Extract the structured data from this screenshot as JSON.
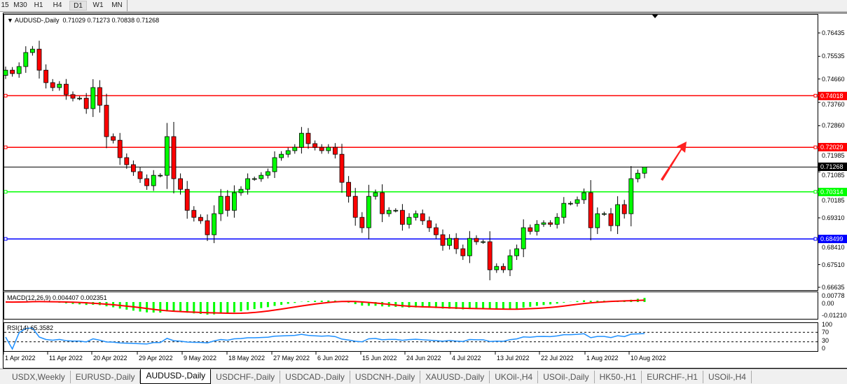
{
  "timeframes": [
    "15",
    "M30",
    "H1",
    "H4",
    "D1",
    "W1",
    "MN"
  ],
  "active_timeframe": "D1",
  "chart": {
    "header": "AUDUSD-,Daily",
    "ohlc": "0.71029 0.71273 0.70838 0.71268",
    "price_axis": [
      "0.76435",
      "0.75535",
      "0.74660",
      "0.73760",
      "0.72860",
      "0.71985",
      "0.71085",
      "0.70185",
      "0.69310",
      "0.68410",
      "0.67510",
      "0.66635"
    ],
    "price_range": [
      0.66635,
      0.76435
    ],
    "levels": [
      {
        "price": 0.74018,
        "label": "0.74018",
        "color": "#ff0000"
      },
      {
        "price": 0.72029,
        "label": "0.72029",
        "color": "#ff0000"
      },
      {
        "price": 0.71268,
        "label": "0.71268",
        "color": "#000000"
      },
      {
        "price": 0.70314,
        "label": "0.70314",
        "color": "#00ff00"
      },
      {
        "price": 0.68499,
        "label": "0.68499",
        "color": "#0000ff"
      }
    ],
    "bull_color": "#00ff00",
    "bear_color": "#ff0000",
    "first_open": 0.748,
    "closes": [
      0.75,
      0.7487,
      0.7514,
      0.7568,
      0.7581,
      0.75,
      0.7452,
      0.7433,
      0.7446,
      0.7406,
      0.7392,
      0.7392,
      0.7352,
      0.7433,
      0.7365,
      0.7244,
      0.723,
      0.7163,
      0.7136,
      0.7109,
      0.7082,
      0.7055,
      0.7095,
      0.7095,
      0.7244,
      0.7082,
      0.7041,
      0.696,
      0.6933,
      0.692,
      0.6866,
      0.6947,
      0.7014,
      0.696,
      0.7028,
      0.7041,
      0.7082,
      0.7082,
      0.7095,
      0.7109,
      0.7163,
      0.7176,
      0.719,
      0.7203,
      0.7257,
      0.7217,
      0.7203,
      0.719,
      0.7203,
      0.7176,
      0.7068,
      0.7014,
      0.6933,
      0.6893,
      0.7014,
      0.7028,
      0.6947,
      0.696,
      0.696,
      0.6906,
      0.6933,
      0.6947,
      0.692,
      0.6893,
      0.6866,
      0.6825,
      0.6852,
      0.6812,
      0.6785,
      0.6852,
      0.6839,
      0.6839,
      0.6731,
      0.6744,
      0.6731,
      0.6785,
      0.6812,
      0.6893,
      0.6879,
      0.6906,
      0.6912,
      0.6906,
      0.6933,
      0.6987,
      0.6987,
      0.7001,
      0.7028,
      0.6893,
      0.6947,
      0.6947,
      0.6901,
      0.6982,
      0.6947,
      0.7082,
      0.7103,
      0.71268
    ],
    "last_candle": {
      "open": 0.71029,
      "high": 0.71273,
      "low": 0.70838,
      "close": 0.71268
    },
    "arrow_color": "#ff2020"
  },
  "macd": {
    "label": "MACD(12,26,9) 0.004407 0.002351",
    "axis": [
      "0.00778",
      "0.00",
      "-0.01210"
    ],
    "hist_color": "#00ff00",
    "signal_color": "#ff0000"
  },
  "rsi": {
    "label": "RSI(14) 65.3582",
    "axis": [
      "100",
      "70",
      "30",
      "0"
    ],
    "line_color": "#1e90ff"
  },
  "dates": [
    "1 Apr 2022",
    "11 Apr 2022",
    "20 Apr 2022",
    "29 Apr 2022",
    "9 May 2022",
    "18 May 2022",
    "27 May 2022",
    "6 Jun 2022",
    "15 Jun 2022",
    "24 Jun 2022",
    "4 Jul 2022",
    "13 Jul 2022",
    "22 Jul 2022",
    "1 Aug 2022",
    "10 Aug 2022"
  ],
  "tabs": [
    "USDX,Weekly",
    "EURUSD-,Daily",
    "AUDUSD-,Daily",
    "USDCHF-,Daily",
    "USDCAD-,Daily",
    "USDCNH-,Daily",
    "XAUUSD-,Daily",
    "UKOil-,H4",
    "USOil-,Daily",
    "HK50-,H1",
    "EURCHF-,H1",
    "USOil-,H4"
  ],
  "active_tab": "AUDUSD-,Daily"
}
